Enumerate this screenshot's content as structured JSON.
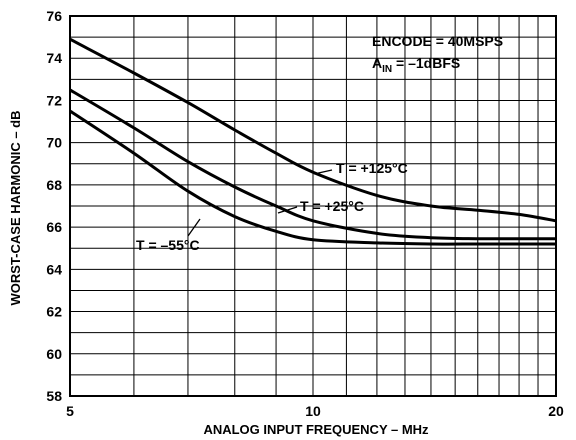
{
  "chart_data": {
    "type": "line",
    "xlabel": "ANALOG INPUT FREQUENCY – MHz",
    "ylabel": "WORST-CASE HARMONIC – dB",
    "xlim": [
      5,
      20
    ],
    "ylim": [
      58,
      76
    ],
    "x_ticks": [
      "5",
      "10",
      "20"
    ],
    "y_ticks": [
      "58",
      "60",
      "62",
      "64",
      "66",
      "68",
      "70",
      "72",
      "74",
      "76"
    ],
    "grid": true,
    "annotations": {
      "line1": "ENCODE = 40MSPS",
      "line2_main": "A",
      "line2_sub": "IN",
      "line2_rest": " = –1dBFS"
    },
    "series": [
      {
        "name": "T = +125°C",
        "x": [
          5,
          6,
          7,
          8,
          9,
          10,
          12,
          14,
          16,
          18,
          20
        ],
        "y": [
          74.9,
          73.3,
          71.9,
          70.6,
          69.5,
          68.6,
          67.5,
          67.0,
          66.8,
          66.6,
          66.3
        ]
      },
      {
        "name": "T = +25°C",
        "x": [
          5,
          6,
          7,
          8,
          9,
          10,
          12,
          14,
          16,
          18,
          20
        ],
        "y": [
          72.5,
          70.7,
          69.1,
          67.9,
          67.0,
          66.3,
          65.7,
          65.5,
          65.45,
          65.45,
          65.45
        ]
      },
      {
        "name": "T = –55°C",
        "x": [
          5,
          6,
          7,
          8,
          9,
          10,
          12,
          14,
          16,
          18,
          20
        ],
        "y": [
          71.5,
          69.5,
          67.7,
          66.5,
          65.8,
          65.4,
          65.25,
          65.2,
          65.2,
          65.2,
          65.2
        ]
      }
    ]
  }
}
